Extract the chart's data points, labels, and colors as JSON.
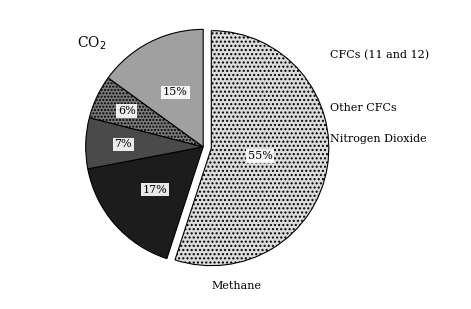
{
  "labels": [
    "CO₂",
    "CFCs (11 and 12)",
    "Other CFCs",
    "Nitrogen Dioxide",
    "Methane"
  ],
  "values": [
    55,
    17,
    7,
    6,
    15
  ],
  "pct_labels": [
    "55%",
    "17%",
    "7%",
    "6%",
    "15%"
  ],
  "colors": [
    "#dcdcdc",
    "#1c1c1c",
    "#4a4a4a",
    "#7a7a7a",
    "#a0a0a0"
  ],
  "hatches": [
    "....",
    "",
    "",
    ".....",
    ""
  ],
  "explode": [
    0.07,
    0,
    0,
    0,
    0
  ],
  "startangle": 90,
  "counterclock": false,
  "background_color": "#ffffff"
}
